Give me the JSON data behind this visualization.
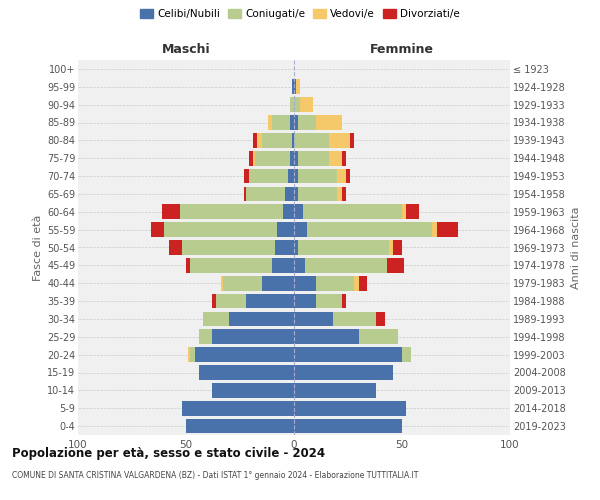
{
  "age_groups": [
    "0-4",
    "5-9",
    "10-14",
    "15-19",
    "20-24",
    "25-29",
    "30-34",
    "35-39",
    "40-44",
    "45-49",
    "50-54",
    "55-59",
    "60-64",
    "65-69",
    "70-74",
    "75-79",
    "80-84",
    "85-89",
    "90-94",
    "95-99",
    "100+"
  ],
  "birth_years": [
    "2019-2023",
    "2014-2018",
    "2009-2013",
    "2004-2008",
    "1999-2003",
    "1994-1998",
    "1989-1993",
    "1984-1988",
    "1979-1983",
    "1974-1978",
    "1969-1973",
    "1964-1968",
    "1959-1963",
    "1954-1958",
    "1949-1953",
    "1944-1948",
    "1939-1943",
    "1934-1938",
    "1929-1933",
    "1924-1928",
    "≤ 1923"
  ],
  "maschi": {
    "celibi": [
      50,
      52,
      38,
      44,
      46,
      38,
      30,
      22,
      15,
      10,
      9,
      8,
      5,
      4,
      3,
      2,
      1,
      2,
      0,
      1,
      0
    ],
    "coniugati": [
      0,
      0,
      0,
      0,
      2,
      6,
      12,
      14,
      18,
      38,
      43,
      52,
      48,
      18,
      18,
      16,
      14,
      8,
      2,
      0,
      0
    ],
    "vedovi": [
      0,
      0,
      0,
      0,
      1,
      0,
      0,
      0,
      1,
      0,
      0,
      0,
      0,
      0,
      0,
      1,
      2,
      2,
      0,
      0,
      0
    ],
    "divorziati": [
      0,
      0,
      0,
      0,
      0,
      0,
      0,
      2,
      0,
      2,
      6,
      6,
      8,
      1,
      2,
      2,
      2,
      0,
      0,
      0,
      0
    ]
  },
  "femmine": {
    "nubili": [
      50,
      52,
      38,
      46,
      50,
      30,
      18,
      10,
      10,
      5,
      2,
      6,
      4,
      2,
      2,
      2,
      0,
      2,
      0,
      1,
      0
    ],
    "coniugate": [
      0,
      0,
      0,
      0,
      4,
      18,
      20,
      12,
      18,
      38,
      42,
      58,
      46,
      18,
      18,
      14,
      16,
      8,
      3,
      0,
      0
    ],
    "vedove": [
      0,
      0,
      0,
      0,
      0,
      0,
      0,
      0,
      2,
      0,
      2,
      2,
      2,
      2,
      4,
      6,
      10,
      12,
      6,
      2,
      0
    ],
    "divorziate": [
      0,
      0,
      0,
      0,
      0,
      0,
      4,
      2,
      4,
      8,
      4,
      10,
      6,
      2,
      2,
      2,
      2,
      0,
      0,
      0,
      0
    ]
  },
  "colors": {
    "celibi": "#4a72aa",
    "coniugati": "#b8cc90",
    "vedovi": "#f5c96a",
    "divorziati": "#cc2222"
  },
  "legend_labels": [
    "Celibi/Nubili",
    "Coniugati/e",
    "Vedovi/e",
    "Divorziati/e"
  ],
  "xlim": 100,
  "title": "Popolazione per età, sesso e stato civile - 2024",
  "subtitle": "COMUNE DI SANTA CRISTINA VALGARDENA (BZ) - Dati ISTAT 1° gennaio 2024 - Elaborazione TUTTITALIA.IT",
  "ylabel_left": "Fasce di età",
  "ylabel_right": "Anni di nascita",
  "xlabel_left": "Maschi",
  "xlabel_right": "Femmine",
  "bg_color": "#f0f0f0"
}
